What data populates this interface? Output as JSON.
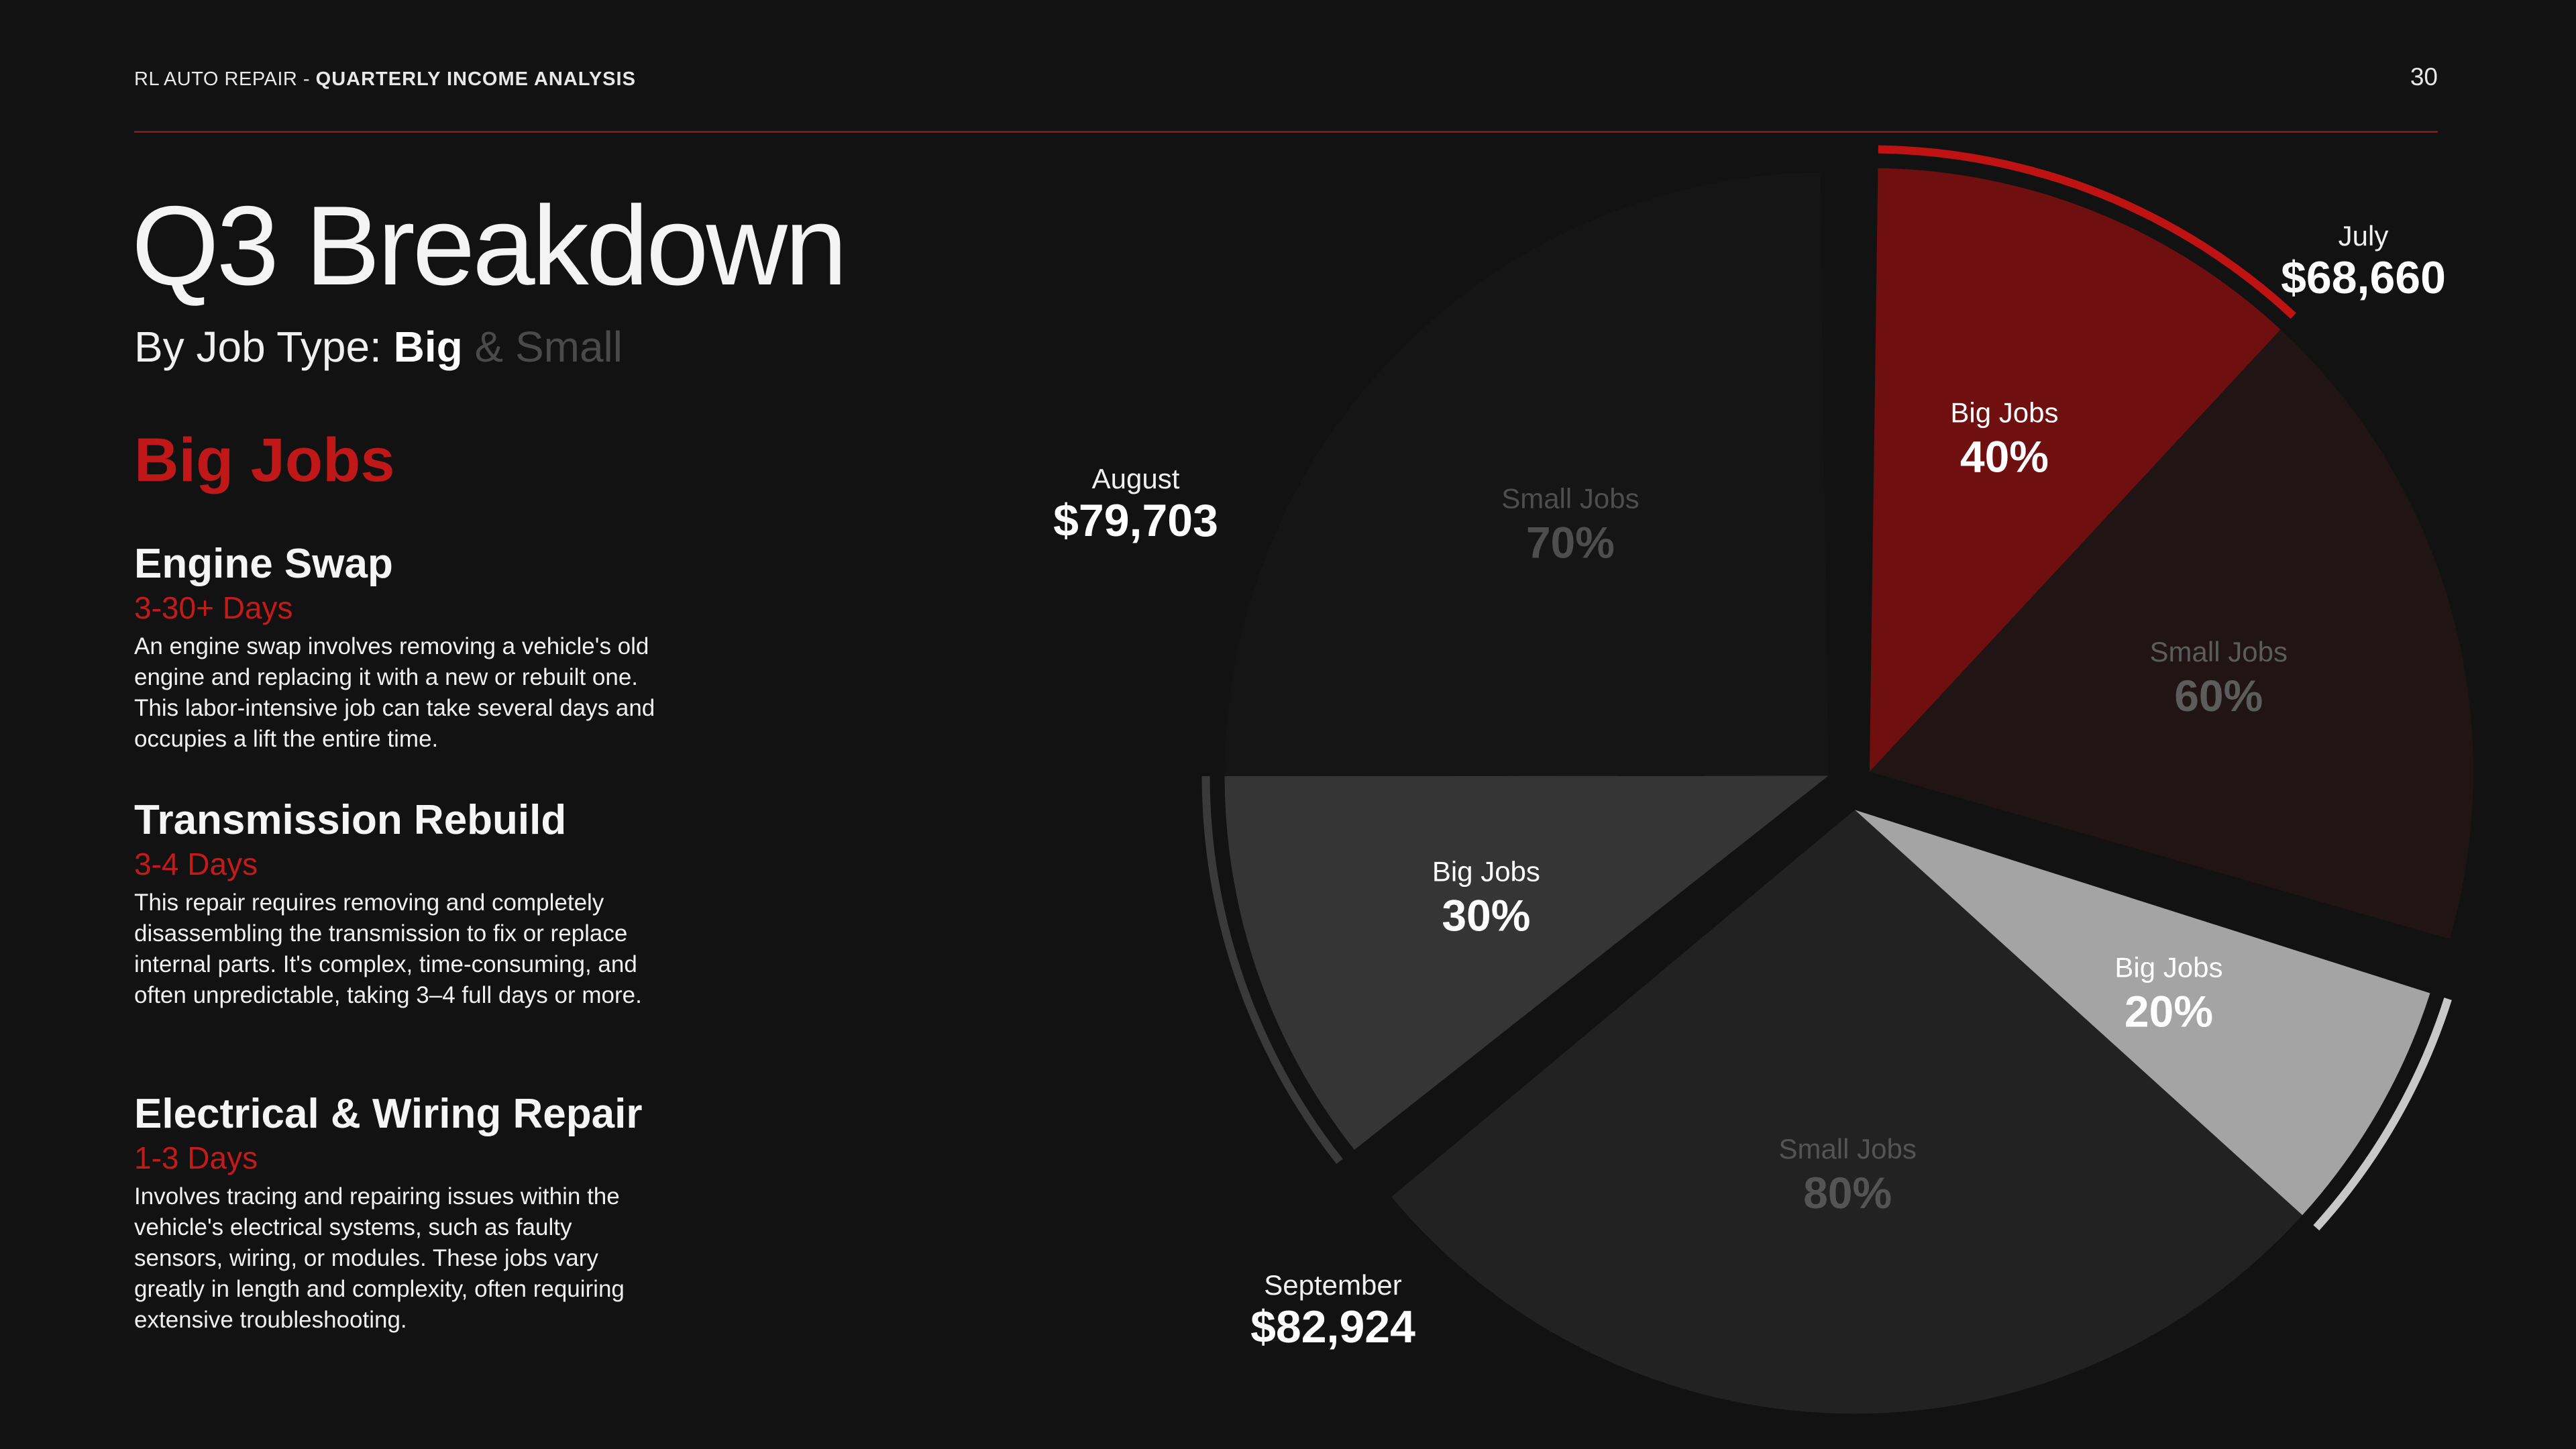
{
  "header": {
    "brand": "RL AUTO REPAIR",
    "separator": " - ",
    "report": "QUARTERLY INCOME ANALYSIS",
    "page_number": "30"
  },
  "title": "Q3 Breakdown",
  "subtitle": {
    "prefix": "By Job Type: ",
    "big": "Big",
    "rest": " & Small"
  },
  "section_heading": "Big Jobs",
  "jobs": [
    {
      "name": "Engine Swap",
      "duration": "3-30+ Days",
      "description": "An engine swap involves removing a vehicle's old engine and replacing it with a new or rebuilt one. This labor-intensive job can take several days and occupies a lift the entire time."
    },
    {
      "name": "Transmission Rebuild",
      "duration": "3-4 Days",
      "description": "This repair requires removing and completely disassembling the transmission to fix or replace internal parts. It's complex, time-consuming, and often unpredictable, taking 3–4 full days or more."
    },
    {
      "name": "Electrical & Wiring Repair",
      "duration": "1-3 Days",
      "description": "Involves tracing and repairing issues within the vehicle's electrical systems, such as faulty sensors, wiring, or modules. These jobs vary greatly in length and complexity, often requiring extensive troubleshooting."
    }
  ],
  "chart_data": {
    "type": "pie",
    "title": "",
    "months": [
      {
        "name": "July",
        "income": 68660,
        "income_label": "$68,660",
        "segments": [
          {
            "label": "Big Jobs",
            "percent": 40,
            "percent_label": "40%",
            "color": "#6f0f0f",
            "text_color": "#ffffff"
          },
          {
            "label": "Small Jobs",
            "percent": 60,
            "percent_label": "60%",
            "color": "#201514",
            "text_color": "#5c5c5c"
          }
        ],
        "accent_color": "#bf1212"
      },
      {
        "name": "August",
        "income": 79703,
        "income_label": "$79,703",
        "segments": [
          {
            "label": "Big Jobs",
            "percent": 20,
            "percent_label": "20%",
            "color": "#a4a4a4",
            "text_color": "#ffffff"
          },
          {
            "label": "Small Jobs",
            "percent": 80,
            "percent_label": "80%",
            "color": "#222222",
            "text_color": "#545454"
          }
        ],
        "accent_color": "#c8c8c8"
      },
      {
        "name": "September",
        "income": 82924,
        "income_label": "$82,924",
        "segments": [
          {
            "label": "Big Jobs",
            "percent": 30,
            "percent_label": "30%",
            "color": "#353535",
            "text_color": "#ffffff"
          },
          {
            "label": "Small Jobs",
            "percent": 70,
            "percent_label": "70%",
            "color": "#151515",
            "text_color": "#4e4e4e"
          }
        ],
        "accent_color": "#3a3a3a"
      }
    ]
  },
  "colors": {
    "background": "#121212",
    "accent_red": "#c01818",
    "rule": "#8e1313"
  }
}
